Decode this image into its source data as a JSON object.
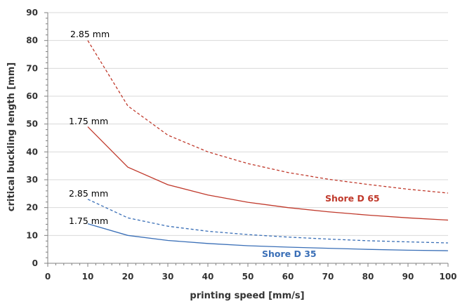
{
  "chart_data": {
    "type": "line",
    "title": "",
    "xlabel": "printing speed [mm/s]",
    "ylabel": "critical buckling length [mm]",
    "xlim": [
      0,
      100
    ],
    "ylim": [
      0,
      90
    ],
    "xticks": [
      0,
      10,
      20,
      30,
      40,
      50,
      60,
      70,
      80,
      90,
      100
    ],
    "yticks": [
      0,
      10,
      20,
      30,
      40,
      50,
      60,
      70,
      80,
      90
    ],
    "grid": "horizontal",
    "legend": "none",
    "x": [
      10,
      20,
      30,
      40,
      50,
      60,
      70,
      80,
      90,
      100
    ],
    "series": [
      {
        "name": "Shore D 65 2.85 mm",
        "style": "dashed",
        "color": "#c0392b",
        "values": [
          80,
          56.5,
          46,
          40,
          35.8,
          32.6,
          30.2,
          28.3,
          26.6,
          25.2
        ]
      },
      {
        "name": "Shore D 65 1.75 mm",
        "style": "solid",
        "color": "#c0392b",
        "values": [
          49,
          34.5,
          28.2,
          24.5,
          21.9,
          20.0,
          18.5,
          17.3,
          16.3,
          15.5
        ]
      },
      {
        "name": "Shore D 35 2.85 mm",
        "style": "dashed",
        "color": "#3a6fb7",
        "values": [
          23,
          16.3,
          13.3,
          11.5,
          10.3,
          9.4,
          8.7,
          8.1,
          7.7,
          7.3
        ]
      },
      {
        "name": "Shore D 35 1.75 mm",
        "style": "solid",
        "color": "#3a6fb7",
        "values": [
          14.2,
          10.0,
          8.2,
          7.1,
          6.3,
          5.8,
          5.4,
          5.0,
          4.7,
          4.5
        ]
      }
    ],
    "annotations": {
      "upper_285": "2.85 mm",
      "upper_175": "1.75 mm",
      "lower_285": "2.85 mm",
      "lower_175": "1.75 mm",
      "shore_65": "Shore D 65",
      "shore_35": "Shore D 35"
    },
    "colors": {
      "red": "#c0392b",
      "blue": "#3a6fb7",
      "grid": "#d9d9d9",
      "axis": "#808080"
    }
  }
}
